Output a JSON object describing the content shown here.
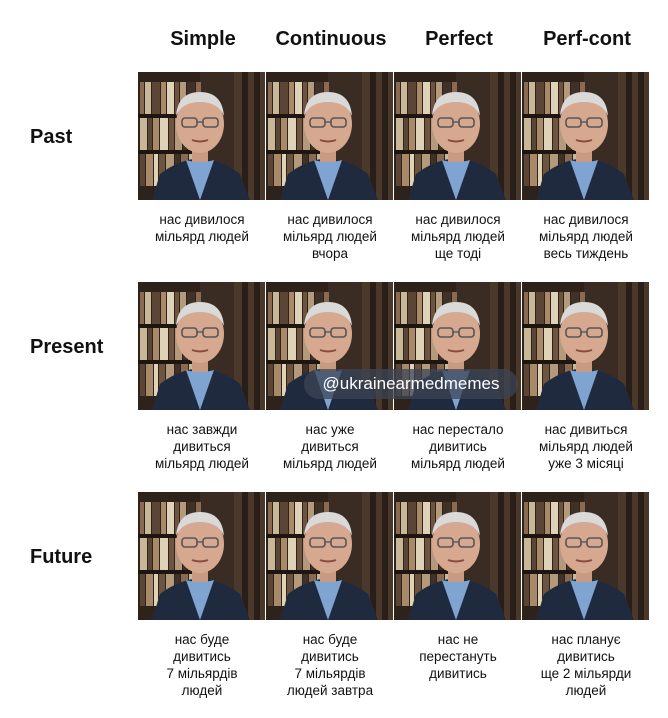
{
  "columns": [
    "Simple",
    "Continuous",
    "Perfect",
    "Perf-cont"
  ],
  "rows": [
    {
      "label": "Past",
      "captions": [
        [
          "нас дивилося",
          "мільярд людей"
        ],
        [
          "нас дивилося",
          "мільярд людей",
          "вчора"
        ],
        [
          "нас дивилося",
          "мільярд людей",
          "ще тоді"
        ],
        [
          "нас дивилося",
          "мільярд людей",
          "весь тиждень"
        ]
      ]
    },
    {
      "label": "Present",
      "captions": [
        [
          "нас завжди",
          "дивиться",
          "мільярд людей"
        ],
        [
          "нас уже",
          "дивиться",
          "мільярд людей"
        ],
        [
          "нас перестало",
          "дивитись",
          "мільярд людей"
        ],
        [
          "нас дивиться",
          "мільярд людей",
          "уже 3 місяці"
        ]
      ]
    },
    {
      "label": "Future",
      "captions": [
        [
          "нас буде",
          "дивитись",
          "7 мільярдів",
          "людей"
        ],
        [
          "нас буде",
          "дивитись",
          "7 мільярдів",
          "людей завтра"
        ],
        [
          "нас не",
          "перестануть",
          "дивитись"
        ],
        [
          "нас планує",
          "дивитись",
          "ще 2 мільярди",
          "людей"
        ]
      ]
    }
  ],
  "watermark": "@ukrainearmedmemes"
}
